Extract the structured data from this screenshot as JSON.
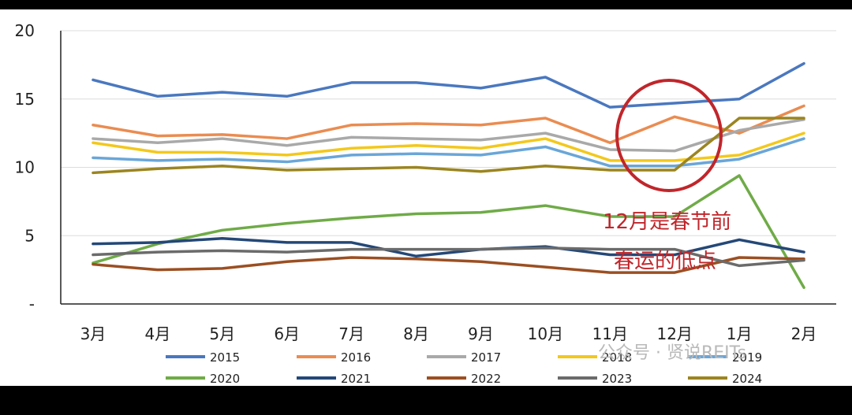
{
  "chart_data": {
    "type": "line",
    "categories": [
      "3月",
      "4月",
      "5月",
      "6月",
      "7月",
      "8月",
      "9月",
      "10月",
      "11月",
      "12月",
      "1月",
      "2月"
    ],
    "yticks": [
      "20",
      "15",
      "10",
      "5",
      "-"
    ],
    "ylim": [
      0,
      20
    ],
    "grid": "horizontal",
    "legend": "bottom",
    "series": [
      {
        "name": "2015",
        "color": "#4a78bf",
        "values": [
          16.4,
          15.2,
          15.5,
          15.2,
          16.2,
          16.2,
          15.8,
          16.6,
          14.4,
          14.7,
          15.0,
          17.6
        ]
      },
      {
        "name": "2016",
        "color": "#ea8c51",
        "values": [
          13.1,
          12.3,
          12.4,
          12.1,
          13.1,
          13.2,
          13.1,
          13.6,
          11.8,
          13.7,
          12.5,
          14.5
        ]
      },
      {
        "name": "2017",
        "color": "#a9a9a9",
        "values": [
          12.1,
          11.8,
          12.1,
          11.6,
          12.2,
          12.1,
          12.0,
          12.5,
          11.3,
          11.2,
          12.7,
          13.5
        ]
      },
      {
        "name": "2018",
        "color": "#f3c81c",
        "values": [
          11.8,
          11.1,
          11.1,
          10.9,
          11.4,
          11.6,
          11.4,
          12.1,
          10.5,
          10.5,
          10.9,
          12.5
        ]
      },
      {
        "name": "2019",
        "color": "#6aa6d8",
        "values": [
          10.7,
          10.5,
          10.6,
          10.4,
          10.9,
          11.0,
          10.9,
          11.5,
          10.1,
          10.1,
          10.6,
          12.1
        ]
      },
      {
        "name": "2020",
        "color": "#6fab47",
        "values": [
          3.0,
          4.4,
          5.4,
          5.9,
          6.3,
          6.6,
          6.7,
          7.2,
          6.4,
          6.4,
          9.4,
          1.2
        ]
      },
      {
        "name": "2021",
        "color": "#244877",
        "values": [
          4.4,
          4.5,
          4.8,
          4.5,
          4.5,
          3.5,
          4.0,
          4.2,
          3.6,
          3.6,
          4.7,
          3.8
        ]
      },
      {
        "name": "2022",
        "color": "#9b4f22",
        "values": [
          2.9,
          2.5,
          2.6,
          3.1,
          3.4,
          3.3,
          3.1,
          2.7,
          2.3,
          2.3,
          3.4,
          3.3
        ]
      },
      {
        "name": "2023",
        "color": "#6b6b6b",
        "values": [
          3.6,
          3.8,
          3.9,
          3.8,
          4.0,
          4.0,
          4.0,
          4.1,
          4.0,
          4.0,
          2.8,
          3.2
        ]
      },
      {
        "name": "2024",
        "color": "#9b8520",
        "values": [
          9.6,
          9.9,
          10.1,
          9.8,
          9.9,
          10.0,
          9.7,
          10.1,
          9.8,
          9.8,
          13.6,
          13.6
        ]
      }
    ]
  },
  "annotation": {
    "line1": "12月是春节前",
    "line2": "春运的低点",
    "color": "#c0262b"
  },
  "watermark": "公众号 · 贤说REITs"
}
